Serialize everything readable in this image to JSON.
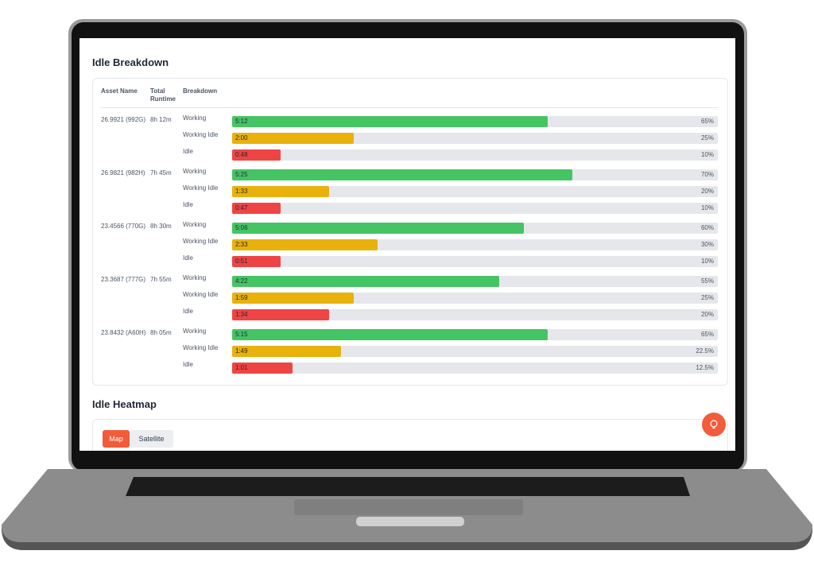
{
  "header": {
    "title": "Idle Breakdown"
  },
  "table": {
    "columns": [
      "Asset Name",
      "Total Runtime",
      "Breakdown"
    ],
    "assets": [
      {
        "name": "26.9921 (992G)",
        "runtime": "8h 12m",
        "rows": [
          {
            "label": "Working",
            "time": "5:12",
            "percent": {
              "value": 65,
              "label": "65%"
            }
          },
          {
            "label": "Working Idle",
            "time": "2:00",
            "percent": {
              "value": 25,
              "label": "25%"
            }
          },
          {
            "label": "Idle",
            "time": "0:48",
            "percent": {
              "value": 10,
              "label": "10%"
            }
          }
        ]
      },
      {
        "name": "26.9821 (982H)",
        "runtime": "7h 45m",
        "rows": [
          {
            "label": "Working",
            "time": "5:25",
            "percent": {
              "value": 70,
              "label": "70%"
            }
          },
          {
            "label": "Working Idle",
            "time": "1:33",
            "percent": {
              "value": 20,
              "label": "20%"
            }
          },
          {
            "label": "Idle",
            "time": "0:47",
            "percent": {
              "value": 10,
              "label": "10%"
            }
          }
        ]
      },
      {
        "name": "23.4566 (770G)",
        "runtime": "8h 30m",
        "rows": [
          {
            "label": "Working",
            "time": "5:06",
            "percent": {
              "value": 60,
              "label": "60%"
            }
          },
          {
            "label": "Working Idle",
            "time": "2:33",
            "percent": {
              "value": 30,
              "label": "30%"
            }
          },
          {
            "label": "Idle",
            "time": "0:51",
            "percent": {
              "value": 10,
              "label": "10%"
            }
          }
        ]
      },
      {
        "name": "23.3687 (777G)",
        "runtime": "7h 55m",
        "rows": [
          {
            "label": "Working",
            "time": "4:22",
            "percent": {
              "value": 55,
              "label": "55%"
            }
          },
          {
            "label": "Working Idle",
            "time": "1:59",
            "percent": {
              "value": 25,
              "label": "25%"
            }
          },
          {
            "label": "Idle",
            "time": "1:34",
            "percent": {
              "value": 20,
              "label": "20%"
            }
          }
        ]
      },
      {
        "name": "23.8432 (A60H)",
        "runtime": "8h 05m",
        "rows": [
          {
            "label": "Working",
            "time": "5:15",
            "percent": {
              "value": 65,
              "label": "65%"
            }
          },
          {
            "label": "Working Idle",
            "time": "1:49",
            "percent": {
              "value": 22.5,
              "label": "22.5%"
            }
          },
          {
            "label": "Idle",
            "time": "1:01",
            "percent": {
              "value": 12.5,
              "label": "12.5%"
            }
          }
        ]
      }
    ]
  },
  "heatmap": {
    "title": "Idle Heatmap",
    "tabs": [
      "Map",
      "Satellite"
    ]
  }
}
